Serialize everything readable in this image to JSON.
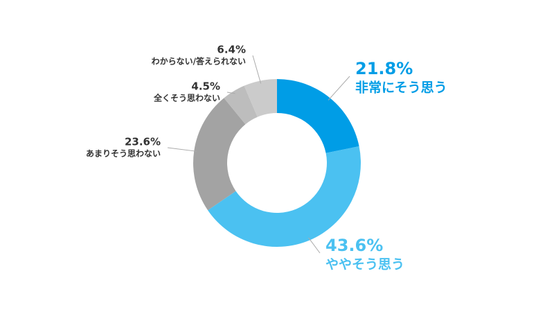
{
  "chart_data": {
    "type": "donut",
    "categories": [
      "非常にそう思う",
      "ややそう思う",
      "あまりそう思わない",
      "全くそう思わない",
      "わからない/答えられない"
    ],
    "values": [
      21.8,
      43.6,
      23.6,
      4.5,
      6.4
    ],
    "value_labels": [
      "21.8%",
      "43.6%",
      "23.6%",
      "4.5%",
      "6.4%"
    ],
    "colors": [
      "#009de6",
      "#4bc1f1",
      "#a3a3a3",
      "#bdbdbd",
      "#cbcbcb"
    ]
  }
}
